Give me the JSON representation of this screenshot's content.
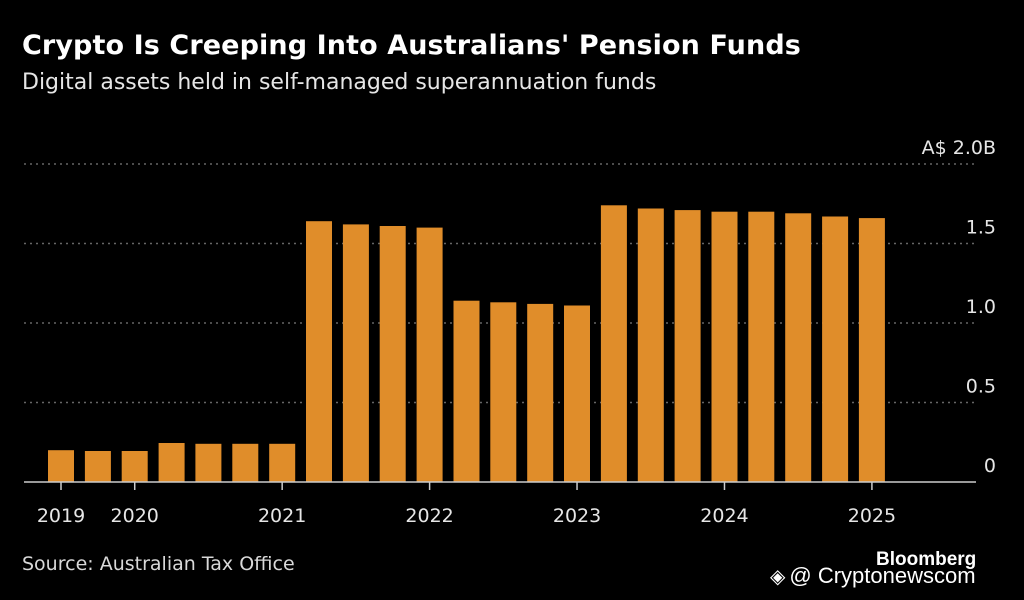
{
  "title": "Crypto Is Creeping Into Australians' Pension Funds",
  "subtitle": "Digital assets held in self-managed superannuation funds",
  "source": "Source: Australian Tax Office",
  "brand": "Bloomberg",
  "watermark": {
    "icon": "binance-logo-icon",
    "text": "@ Cryptonewscom"
  },
  "colors": {
    "background": "#000000",
    "bar": "#e08d2a",
    "grid": "#666666",
    "text": "#ffffff"
  },
  "chart_data": {
    "type": "bar",
    "title": "Crypto Is Creeping Into Australians' Pension Funds",
    "subtitle": "Digital assets held in self-managed superannuation funds",
    "xlabel": "",
    "ylabel": "",
    "ylim": [
      0,
      2.0
    ],
    "y_ticks": [
      {
        "value": 2.0,
        "label": "A$ 2.0B"
      },
      {
        "value": 1.5,
        "label": "1.5"
      },
      {
        "value": 1.0,
        "label": "1.0"
      },
      {
        "value": 0.5,
        "label": "0.5"
      },
      {
        "value": 0,
        "label": "0"
      }
    ],
    "x_ticks": [
      {
        "label": "2019",
        "bar_index": 0
      },
      {
        "label": "2020",
        "bar_index": 2
      },
      {
        "label": "2021",
        "bar_index": 6
      },
      {
        "label": "2022",
        "bar_index": 10
      },
      {
        "label": "2023",
        "bar_index": 14
      },
      {
        "label": "2024",
        "bar_index": 18
      },
      {
        "label": "2025",
        "bar_index": 22
      }
    ],
    "grid": true,
    "y_axis_position": "right",
    "legend": "none",
    "values": [
      0.2,
      0.195,
      0.195,
      0.245,
      0.24,
      0.24,
      0.24,
      1.64,
      1.62,
      1.61,
      1.6,
      1.14,
      1.13,
      1.12,
      1.11,
      1.74,
      1.72,
      1.71,
      1.7,
      1.7,
      1.69,
      1.67,
      1.66
    ]
  }
}
